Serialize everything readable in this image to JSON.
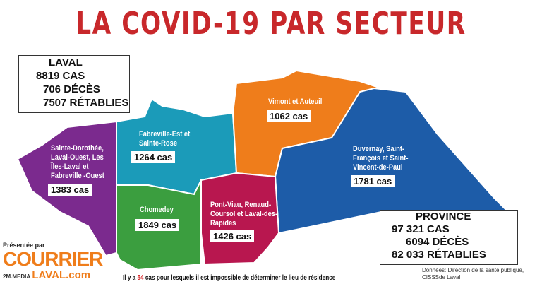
{
  "title": "LA COVID-19 PAR SECTEUR",
  "laval": {
    "heading": "LAVAL",
    "cas": "8819 CAS",
    "deces": "706 DÉCÈS",
    "retablies": "7507 RÉTABLIES"
  },
  "province": {
    "heading": "PROVINCE",
    "cas": "97 321 CAS",
    "deces": "6094 DÉCÈS",
    "retablies": "82 033 RÉTABLIES"
  },
  "sectors": [
    {
      "name": "Sainte-Dorothée, Laval-Ouest, Les Îles-Laval et Fabreville -Ouest",
      "count": "1383 cas",
      "color": "#7b2a8e"
    },
    {
      "name": "Fabreville-Est et Sainte-Rose",
      "count": "1264 cas",
      "color": "#1b9bb9"
    },
    {
      "name": "Vimont et Auteuil",
      "count": "1062 cas",
      "color": "#ef7d1b"
    },
    {
      "name": "Duvernay, Saint-François et Saint-Vincent-de-Paul",
      "count": "1781 cas",
      "color": "#1d5ca8"
    },
    {
      "name": "Chomedey",
      "count": "1849 cas",
      "color": "#3b9e3f"
    },
    {
      "name": "Pont-Viau, Renaud-Coursol et Laval-des-Rapides",
      "count": "1426 cas",
      "color": "#b8174f"
    }
  ],
  "footnote": {
    "pre": "Il y a ",
    "num": "54",
    "post": " cas pour lesquels il est impossible de déterminer le lieu de résidence"
  },
  "source": "Données: Direction de la santé publique, CISSSde Laval",
  "sponsor": {
    "presented": "Présentée par",
    "brand1": "COURRIER",
    "brand2": "LAVAL.com",
    "network": "2M.MEDIA"
  }
}
